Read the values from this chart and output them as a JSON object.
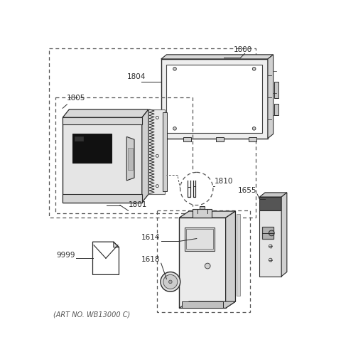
{
  "bg_color": "#ffffff",
  "line_color": "#2a2a2a",
  "dashed_color": "#555555",
  "label_color": "#222222",
  "footer_text": "(ART NO. WB13000 C)",
  "figsize": [
    4.8,
    5.12
  ],
  "dpi": 100
}
